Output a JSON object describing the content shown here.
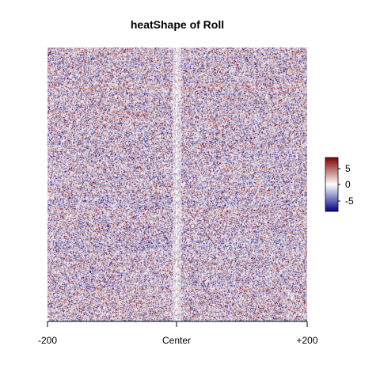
{
  "chart_data": {
    "type": "heatmap",
    "title": "heatShape of Roll",
    "xlabel": "",
    "ylabel": "",
    "x_ticks": [
      "-200",
      "Center",
      "+200"
    ],
    "x_range": [
      -200,
      200
    ],
    "center_marker": "dashed white vertical line at Center",
    "value_range": [
      -8,
      8
    ],
    "colorscale": {
      "low": "#00007f",
      "mid": "#ffffff",
      "high": "#7f0000"
    },
    "legend": {
      "position": "right",
      "ticks": [
        {
          "value": 5,
          "label": "5"
        },
        {
          "value": 0,
          "label": "0"
        },
        {
          "value": -5,
          "label": "-5"
        }
      ]
    }
  }
}
